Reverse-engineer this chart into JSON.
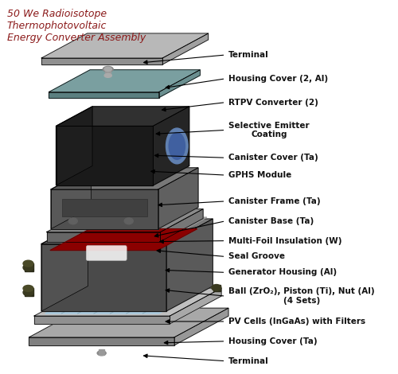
{
  "title": "50 We Radioisotope\nThermophotovoltaic\nEnergy Converter Assembly",
  "title_color": "#8B1A1A",
  "background_color": "#ffffff",
  "labels": [
    "Terminal",
    "Housing Cover (2, Al)",
    "RTPV Converter (2)",
    "Selective Emitter\nCoating",
    "Canister Cover (Ta)",
    "GPHS Module",
    "Canister Frame (Ta)",
    "Canister Base (Ta)",
    "Multi-Foil Insulation (W)",
    "Seal Groove",
    "Generator Housing (Al)",
    "Ball (ZrO₂), Piston (Ti), Nut (Al)\n(4 Sets)",
    "PV Cells (InGaAs) with Filters",
    "Housing Cover (Ta)",
    "Terminal"
  ]
}
